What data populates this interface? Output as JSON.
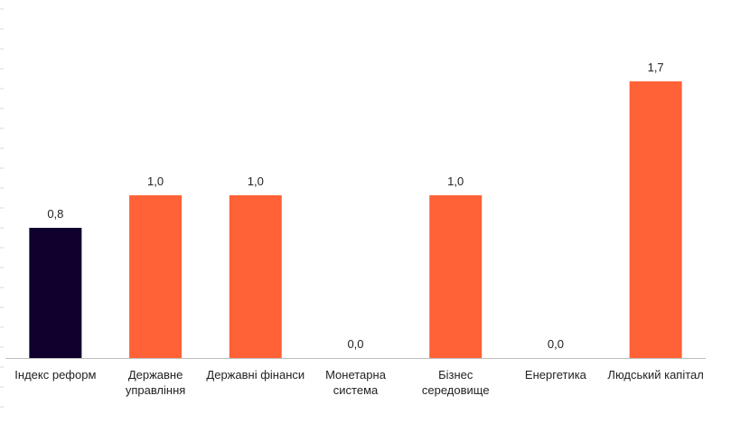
{
  "chart_data": {
    "type": "bar",
    "categories": [
      [
        "Індекс реформ"
      ],
      [
        "Державне",
        "управління"
      ],
      [
        "Державні фінанси"
      ],
      [
        "Монетарна",
        "система"
      ],
      [
        "Бізнес",
        "середовище"
      ],
      [
        "Енергетика"
      ],
      [
        "Людський капітал"
      ]
    ],
    "values": [
      0.8,
      1.0,
      1.0,
      0.0,
      1.0,
      0.0,
      1.7
    ],
    "value_labels": [
      "0,8",
      "1,0",
      "1,0",
      "0,0",
      "1,0",
      "0,0",
      "1,7"
    ],
    "highlight_index": 0,
    "title": "",
    "xlabel": "",
    "ylabel": "",
    "ylim": [
      0,
      1.7
    ],
    "grid": false,
    "legend": "none",
    "colors": {
      "highlight": "#10002e",
      "bar": "#ff6236",
      "axis": "#bfbfbf",
      "ticks": "#d9d9d9"
    }
  }
}
